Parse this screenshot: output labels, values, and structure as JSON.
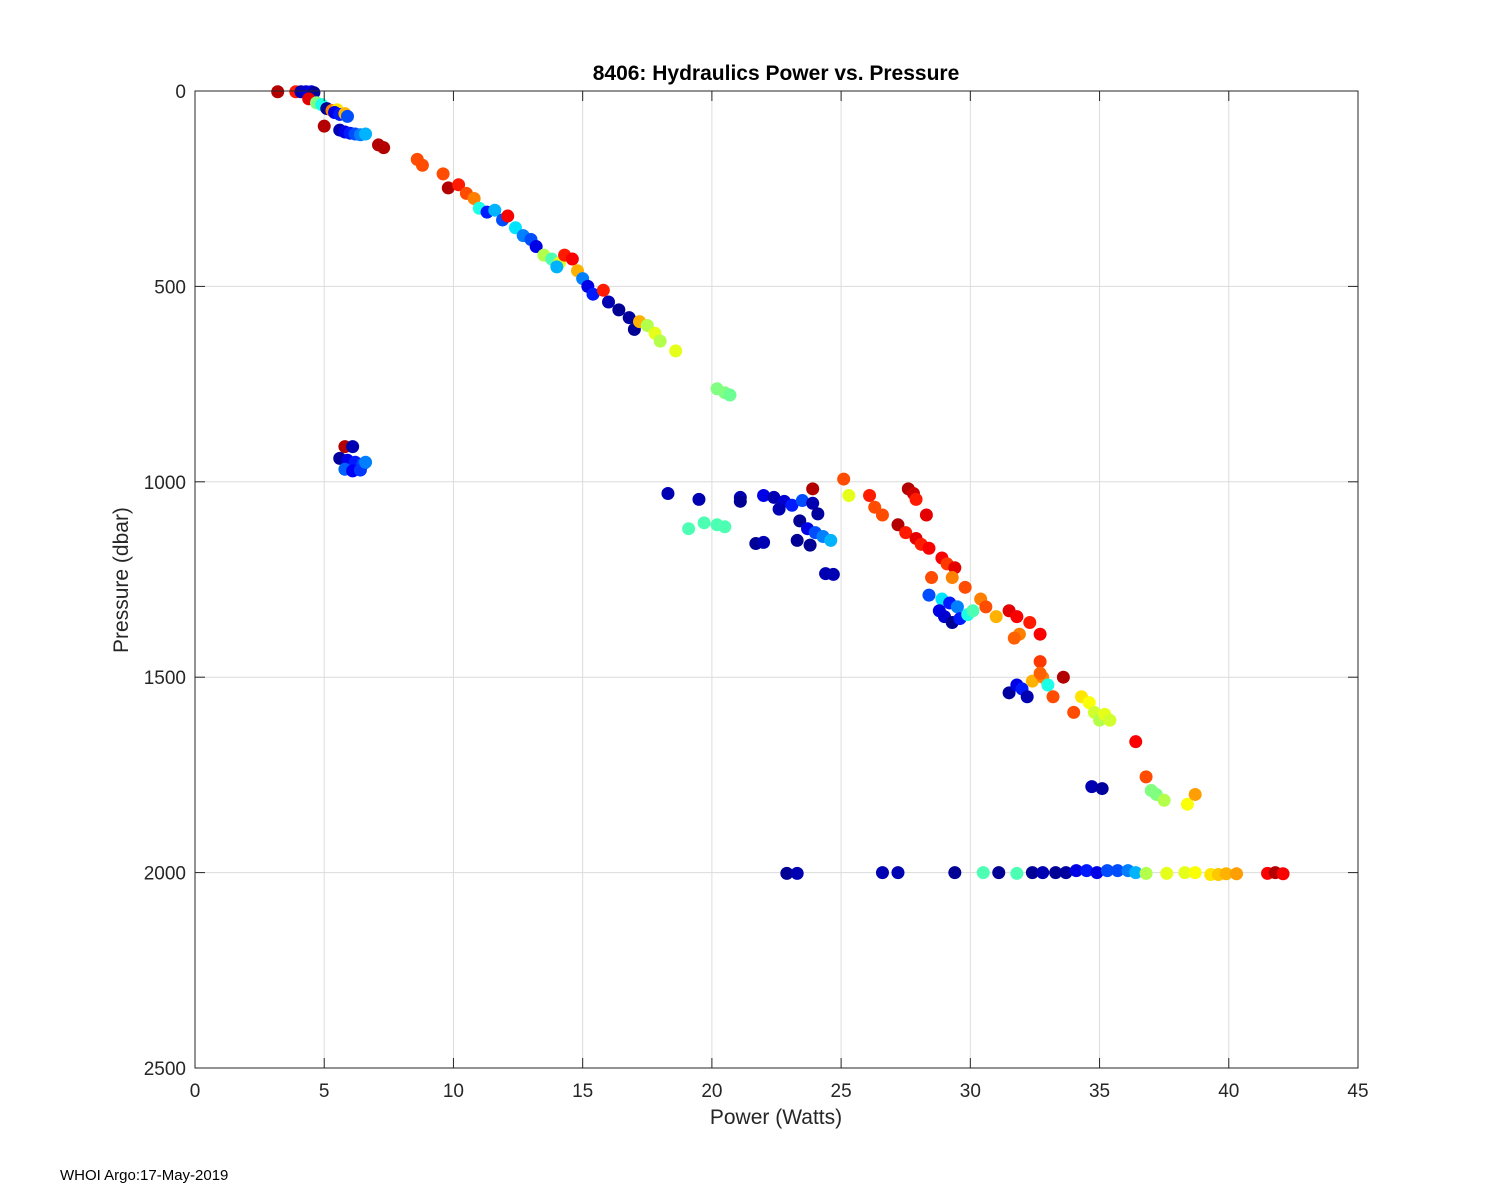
{
  "chart_data": {
    "type": "scatter",
    "title": "8406: Hydraulics Power vs. Pressure",
    "xlabel": "Power (Watts)",
    "ylabel": "Pressure (dbar)",
    "xlim": [
      0,
      45
    ],
    "ylim": [
      0,
      2500
    ],
    "y_reversed": true,
    "grid": true,
    "xticks": [
      0,
      5,
      10,
      15,
      20,
      25,
      30,
      35,
      40,
      45
    ],
    "xtick_labels": [
      "0",
      "5",
      "10",
      "15",
      "20",
      "25",
      "30",
      "35",
      "40",
      "45"
    ],
    "yticks": [
      0,
      500,
      1000,
      1500,
      2000,
      2500
    ],
    "ytick_labels": [
      "0",
      "500",
      "1000",
      "1500",
      "2000",
      "2500"
    ],
    "colormap": "jet",
    "points": [
      [
        3.2,
        2,
        0.95
      ],
      [
        3.9,
        2,
        0.85
      ],
      [
        4.1,
        2,
        0.05
      ],
      [
        4.3,
        2,
        0.08
      ],
      [
        4.5,
        2,
        0.1
      ],
      [
        4.6,
        4,
        0.03
      ],
      [
        4.4,
        20,
        0.9
      ],
      [
        4.7,
        30,
        0.5
      ],
      [
        4.9,
        35,
        0.4
      ],
      [
        5.1,
        45,
        0.02
      ],
      [
        5.3,
        50,
        0.75
      ],
      [
        5.5,
        48,
        0.65
      ],
      [
        5.4,
        55,
        0.1
      ],
      [
        5.6,
        60,
        0.15
      ],
      [
        5.8,
        58,
        0.7
      ],
      [
        5.9,
        65,
        0.2
      ],
      [
        5.0,
        90,
        0.95
      ],
      [
        5.6,
        100,
        0.05
      ],
      [
        5.8,
        105,
        0.1
      ],
      [
        6.0,
        108,
        0.15
      ],
      [
        6.2,
        110,
        0.2
      ],
      [
        6.4,
        112,
        0.25
      ],
      [
        6.6,
        110,
        0.3
      ],
      [
        7.1,
        138,
        0.95
      ],
      [
        7.3,
        145,
        0.95
      ],
      [
        8.6,
        175,
        0.8
      ],
      [
        8.8,
        190,
        0.8
      ],
      [
        9.6,
        212,
        0.8
      ],
      [
        9.8,
        248,
        0.95
      ],
      [
        10.2,
        240,
        0.85
      ],
      [
        10.5,
        262,
        0.8
      ],
      [
        10.8,
        275,
        0.75
      ],
      [
        11.0,
        300,
        0.4
      ],
      [
        11.3,
        310,
        0.15
      ],
      [
        11.6,
        305,
        0.3
      ],
      [
        11.9,
        330,
        0.2
      ],
      [
        12.1,
        320,
        0.88
      ],
      [
        12.4,
        350,
        0.35
      ],
      [
        12.7,
        370,
        0.25
      ],
      [
        13.0,
        380,
        0.2
      ],
      [
        13.2,
        398,
        0.1
      ],
      [
        13.5,
        420,
        0.55
      ],
      [
        13.8,
        430,
        0.45
      ],
      [
        14.1,
        440,
        0.6
      ],
      [
        14.3,
        420,
        0.85
      ],
      [
        14.6,
        430,
        0.88
      ],
      [
        14.0,
        450,
        0.3
      ],
      [
        14.8,
        460,
        0.7
      ],
      [
        15.0,
        480,
        0.25
      ],
      [
        15.2,
        500,
        0.1
      ],
      [
        15.4,
        520,
        0.15
      ],
      [
        15.8,
        510,
        0.85
      ],
      [
        16.0,
        540,
        0.05
      ],
      [
        16.4,
        560,
        0.02
      ],
      [
        16.8,
        580,
        0.03
      ],
      [
        17.0,
        610,
        0.02
      ],
      [
        17.2,
        590,
        0.7
      ],
      [
        17.5,
        600,
        0.55
      ],
      [
        17.8,
        620,
        0.6
      ],
      [
        18.0,
        640,
        0.55
      ],
      [
        18.6,
        665,
        0.6
      ],
      [
        20.2,
        762,
        0.5
      ],
      [
        20.5,
        772,
        0.5
      ],
      [
        20.7,
        778,
        0.48
      ],
      [
        5.8,
        910,
        0.95
      ],
      [
        6.1,
        910,
        0.05
      ],
      [
        5.6,
        940,
        0.03
      ],
      [
        5.9,
        945,
        0.1
      ],
      [
        6.2,
        950,
        0.15
      ],
      [
        6.5,
        955,
        0.2
      ],
      [
        5.8,
        968,
        0.22
      ],
      [
        6.1,
        972,
        0.12
      ],
      [
        6.4,
        970,
        0.18
      ],
      [
        6.6,
        950,
        0.25
      ],
      [
        18.3,
        1030,
        0.05
      ],
      [
        19.5,
        1045,
        0.05
      ],
      [
        21.1,
        1040,
        0.05
      ],
      [
        21.1,
        1050,
        0.02
      ],
      [
        19.1,
        1120,
        0.45
      ],
      [
        19.7,
        1105,
        0.45
      ],
      [
        20.2,
        1110,
        0.45
      ],
      [
        20.5,
        1115,
        0.45
      ],
      [
        21.7,
        1158,
        0.02
      ],
      [
        22.0,
        1155,
        0.05
      ],
      [
        22.0,
        1035,
        0.1
      ],
      [
        22.4,
        1040,
        0.05
      ],
      [
        22.8,
        1050,
        0.08
      ],
      [
        23.1,
        1060,
        0.15
      ],
      [
        23.5,
        1048,
        0.2
      ],
      [
        23.9,
        1055,
        0.05
      ],
      [
        24.1,
        1082,
        0.03
      ],
      [
        23.4,
        1100,
        0.02
      ],
      [
        23.7,
        1120,
        0.1
      ],
      [
        24.0,
        1130,
        0.2
      ],
      [
        24.3,
        1140,
        0.25
      ],
      [
        24.6,
        1150,
        0.3
      ],
      [
        22.6,
        1070,
        0.05
      ],
      [
        23.3,
        1150,
        0.02
      ],
      [
        23.8,
        1162,
        0.02
      ],
      [
        24.4,
        1235,
        0.05
      ],
      [
        24.7,
        1237,
        0.05
      ],
      [
        23.9,
        1018,
        0.95
      ],
      [
        25.1,
        993,
        0.8
      ],
      [
        25.3,
        1035,
        0.6
      ],
      [
        26.1,
        1035,
        0.85
      ],
      [
        26.3,
        1065,
        0.8
      ],
      [
        26.6,
        1085,
        0.8
      ],
      [
        27.6,
        1018,
        0.95
      ],
      [
        27.8,
        1030,
        0.92
      ],
      [
        27.9,
        1045,
        0.85
      ],
      [
        28.3,
        1085,
        0.9
      ],
      [
        27.2,
        1110,
        0.95
      ],
      [
        27.5,
        1130,
        0.85
      ],
      [
        27.9,
        1145,
        0.9
      ],
      [
        28.1,
        1160,
        0.85
      ],
      [
        28.4,
        1170,
        0.88
      ],
      [
        28.9,
        1195,
        0.88
      ],
      [
        29.1,
        1210,
        0.82
      ],
      [
        29.4,
        1220,
        0.9
      ],
      [
        28.5,
        1245,
        0.8
      ],
      [
        29.3,
        1245,
        0.75
      ],
      [
        29.8,
        1270,
        0.8
      ],
      [
        28.4,
        1290,
        0.2
      ],
      [
        28.9,
        1300,
        0.35
      ],
      [
        29.2,
        1310,
        0.15
      ],
      [
        29.5,
        1320,
        0.25
      ],
      [
        28.8,
        1330,
        0.1
      ],
      [
        29.0,
        1345,
        0.08
      ],
      [
        29.3,
        1360,
        0.02
      ],
      [
        29.6,
        1350,
        0.15
      ],
      [
        29.9,
        1340,
        0.4
      ],
      [
        30.1,
        1330,
        0.45
      ],
      [
        30.4,
        1300,
        0.75
      ],
      [
        30.6,
        1320,
        0.8
      ],
      [
        31.0,
        1345,
        0.7
      ],
      [
        31.5,
        1330,
        0.9
      ],
      [
        31.8,
        1345,
        0.88
      ],
      [
        31.9,
        1390,
        0.75
      ],
      [
        32.3,
        1360,
        0.85
      ],
      [
        32.7,
        1390,
        0.88
      ],
      [
        31.7,
        1400,
        0.78
      ],
      [
        31.5,
        1540,
        0.03
      ],
      [
        31.8,
        1520,
        0.1
      ],
      [
        32.0,
        1530,
        0.15
      ],
      [
        32.2,
        1550,
        0.05
      ],
      [
        32.4,
        1510,
        0.7
      ],
      [
        32.8,
        1500,
        0.75
      ],
      [
        33.0,
        1520,
        0.4
      ],
      [
        33.2,
        1550,
        0.8
      ],
      [
        33.6,
        1500,
        0.95
      ],
      [
        32.7,
        1460,
        0.82
      ],
      [
        32.7,
        1490,
        0.78
      ],
      [
        34.0,
        1590,
        0.8
      ],
      [
        34.3,
        1550,
        0.65
      ],
      [
        34.6,
        1565,
        0.62
      ],
      [
        34.8,
        1590,
        0.58
      ],
      [
        35.0,
        1610,
        0.55
      ],
      [
        35.2,
        1595,
        0.6
      ],
      [
        35.4,
        1610,
        0.58
      ],
      [
        34.7,
        1780,
        0.05
      ],
      [
        35.1,
        1785,
        0.03
      ],
      [
        36.4,
        1665,
        0.88
      ],
      [
        36.8,
        1755,
        0.8
      ],
      [
        37.0,
        1790,
        0.5
      ],
      [
        37.2,
        1800,
        0.5
      ],
      [
        37.5,
        1815,
        0.55
      ],
      [
        38.4,
        1825,
        0.62
      ],
      [
        38.7,
        1800,
        0.72
      ],
      [
        22.9,
        2002,
        0.02
      ],
      [
        23.3,
        2002,
        0.05
      ],
      [
        26.6,
        2000,
        0.05
      ],
      [
        27.2,
        2000,
        0.05
      ],
      [
        29.4,
        2000,
        0.02
      ],
      [
        30.5,
        2000,
        0.45
      ],
      [
        31.1,
        2000,
        0.02
      ],
      [
        31.8,
        2002,
        0.45
      ],
      [
        32.4,
        2000,
        0.02
      ],
      [
        32.8,
        2000,
        0.05
      ],
      [
        33.3,
        2000,
        0.02
      ],
      [
        33.7,
        2000,
        0.03
      ],
      [
        34.1,
        1995,
        0.1
      ],
      [
        34.5,
        1995,
        0.15
      ],
      [
        34.9,
        2000,
        0.1
      ],
      [
        35.3,
        1995,
        0.2
      ],
      [
        35.7,
        1995,
        0.2
      ],
      [
        36.1,
        1995,
        0.25
      ],
      [
        36.4,
        2000,
        0.3
      ],
      [
        36.8,
        2002,
        0.55
      ],
      [
        37.6,
        2002,
        0.6
      ],
      [
        38.3,
        2000,
        0.6
      ],
      [
        38.7,
        2000,
        0.62
      ],
      [
        39.3,
        2005,
        0.65
      ],
      [
        39.6,
        2005,
        0.68
      ],
      [
        39.9,
        2003,
        0.7
      ],
      [
        40.3,
        2003,
        0.72
      ],
      [
        41.5,
        2002,
        0.88
      ],
      [
        41.8,
        2000,
        0.95
      ],
      [
        42.1,
        2003,
        0.88
      ]
    ]
  },
  "footer": "WHOI Argo:17-May-2019"
}
